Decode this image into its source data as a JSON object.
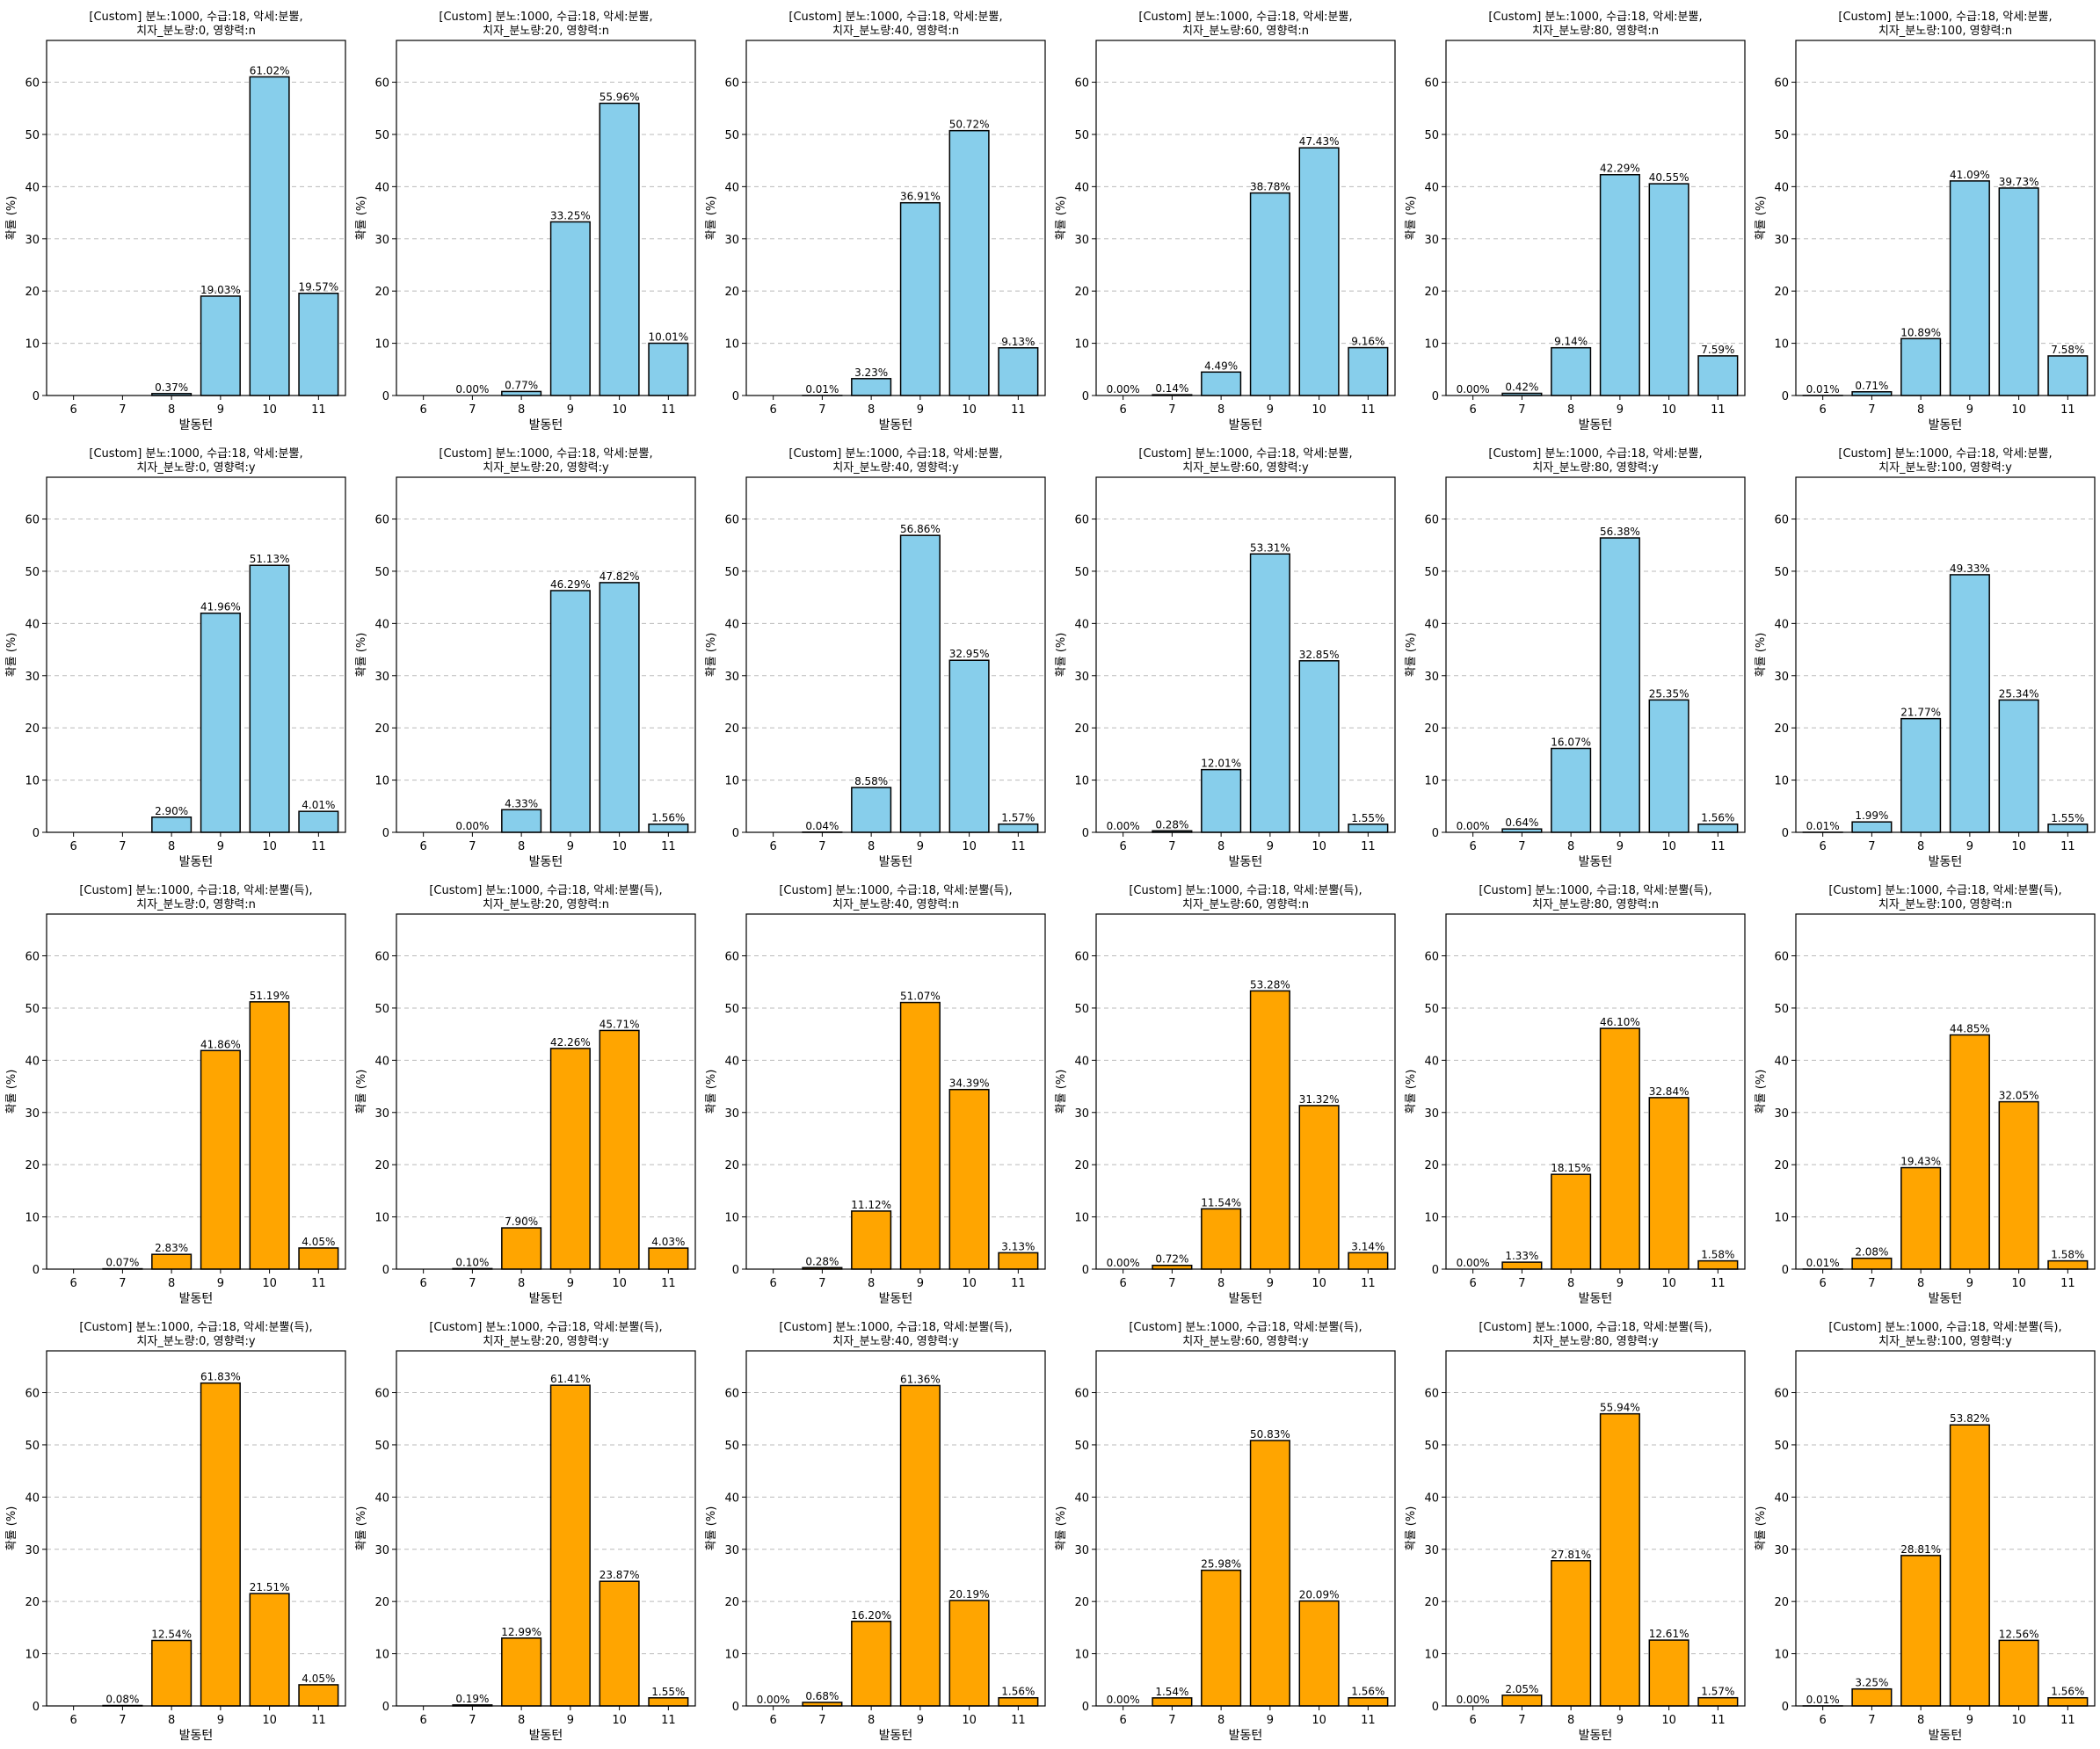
{
  "colors": {
    "row1": "#87ceeb",
    "row2": "#87ceeb",
    "row3": "#ffa500",
    "row4": "#ffa500",
    "edge": "#000000",
    "grid": "#bbbbbb"
  },
  "chart_data": [
    {
      "type": "bar",
      "title": [
        "[Custom] 분노:1000, 수급:18, 악세:분뿔,",
        "치자_분노량:0, 영향력:n"
      ],
      "xlabel": "발동턴",
      "ylabel": "확률 (%)",
      "categories": [
        "6",
        "7",
        "8",
        "9",
        "10",
        "11"
      ],
      "values": [
        null,
        null,
        0.37,
        19.03,
        61.02,
        19.57
      ],
      "labels": [
        "",
        "",
        "0.37%",
        "19.03%",
        "61.02%",
        "19.57%"
      ],
      "ylim": [
        0,
        68
      ],
      "yticks": [
        0,
        10,
        20,
        30,
        40,
        50,
        60
      ],
      "grid": "y-dashed",
      "color": "#87ceeb"
    },
    {
      "type": "bar",
      "title": [
        "[Custom] 분노:1000, 수급:18, 악세:분뿔,",
        "치자_분노량:20, 영향력:n"
      ],
      "xlabel": "발동턴",
      "ylabel": "확률 (%)",
      "categories": [
        "6",
        "7",
        "8",
        "9",
        "10",
        "11"
      ],
      "values": [
        null,
        0.0,
        0.77,
        33.25,
        55.96,
        10.01
      ],
      "labels": [
        "",
        "0.00%",
        "0.77%",
        "33.25%",
        "55.96%",
        "10.01%"
      ],
      "ylim": [
        0,
        68
      ],
      "yticks": [
        0,
        10,
        20,
        30,
        40,
        50,
        60
      ],
      "grid": "y-dashed",
      "color": "#87ceeb"
    },
    {
      "type": "bar",
      "title": [
        "[Custom] 분노:1000, 수급:18, 악세:분뿔,",
        "치자_분노량:40, 영향력:n"
      ],
      "xlabel": "발동턴",
      "ylabel": "확률 (%)",
      "categories": [
        "6",
        "7",
        "8",
        "9",
        "10",
        "11"
      ],
      "values": [
        null,
        0.01,
        3.23,
        36.91,
        50.72,
        9.13
      ],
      "labels": [
        "",
        "0.01%",
        "3.23%",
        "36.91%",
        "50.72%",
        "9.13%"
      ],
      "ylim": [
        0,
        68
      ],
      "yticks": [
        0,
        10,
        20,
        30,
        40,
        50,
        60
      ],
      "grid": "y-dashed",
      "color": "#87ceeb"
    },
    {
      "type": "bar",
      "title": [
        "[Custom] 분노:1000, 수급:18, 악세:분뿔,",
        "치자_분노량:60, 영향력:n"
      ],
      "xlabel": "발동턴",
      "ylabel": "확률 (%)",
      "categories": [
        "6",
        "7",
        "8",
        "9",
        "10",
        "11"
      ],
      "values": [
        0.0,
        0.14,
        4.49,
        38.78,
        47.43,
        9.16
      ],
      "labels": [
        "0.00%",
        "0.14%",
        "4.49%",
        "38.78%",
        "47.43%",
        "9.16%"
      ],
      "ylim": [
        0,
        68
      ],
      "yticks": [
        0,
        10,
        20,
        30,
        40,
        50,
        60
      ],
      "grid": "y-dashed",
      "color": "#87ceeb"
    },
    {
      "type": "bar",
      "title": [
        "[Custom] 분노:1000, 수급:18, 악세:분뿔,",
        "치자_분노량:80, 영향력:n"
      ],
      "xlabel": "발동턴",
      "ylabel": "확률 (%)",
      "categories": [
        "6",
        "7",
        "8",
        "9",
        "10",
        "11"
      ],
      "values": [
        0.0,
        0.42,
        9.14,
        42.29,
        40.55,
        7.59
      ],
      "labels": [
        "0.00%",
        "0.42%",
        "9.14%",
        "42.29%",
        "40.55%",
        "7.59%"
      ],
      "ylim": [
        0,
        68
      ],
      "yticks": [
        0,
        10,
        20,
        30,
        40,
        50,
        60
      ],
      "grid": "y-dashed",
      "color": "#87ceeb"
    },
    {
      "type": "bar",
      "title": [
        "[Custom] 분노:1000, 수급:18, 악세:분뿔,",
        "치자_분노량:100, 영향력:n"
      ],
      "xlabel": "발동턴",
      "ylabel": "확률 (%)",
      "categories": [
        "6",
        "7",
        "8",
        "9",
        "10",
        "11"
      ],
      "values": [
        0.01,
        0.71,
        10.89,
        41.09,
        39.73,
        7.58
      ],
      "labels": [
        "0.01%",
        "0.71%",
        "10.89%",
        "41.09%",
        "39.73%",
        "7.58%"
      ],
      "ylim": [
        0,
        68
      ],
      "yticks": [
        0,
        10,
        20,
        30,
        40,
        50,
        60
      ],
      "grid": "y-dashed",
      "color": "#87ceeb"
    },
    {
      "type": "bar",
      "title": [
        "[Custom] 분노:1000, 수급:18, 악세:분뿔,",
        "치자_분노량:0, 영향력:y"
      ],
      "xlabel": "발동턴",
      "ylabel": "확률 (%)",
      "categories": [
        "6",
        "7",
        "8",
        "9",
        "10",
        "11"
      ],
      "values": [
        null,
        null,
        2.9,
        41.96,
        51.13,
        4.01
      ],
      "labels": [
        "",
        "",
        "2.90%",
        "41.96%",
        "51.13%",
        "4.01%"
      ],
      "ylim": [
        0,
        68
      ],
      "yticks": [
        0,
        10,
        20,
        30,
        40,
        50,
        60
      ],
      "grid": "y-dashed",
      "color": "#87ceeb"
    },
    {
      "type": "bar",
      "title": [
        "[Custom] 분노:1000, 수급:18, 악세:분뿔,",
        "치자_분노량:20, 영향력:y"
      ],
      "xlabel": "발동턴",
      "ylabel": "확률 (%)",
      "categories": [
        "6",
        "7",
        "8",
        "9",
        "10",
        "11"
      ],
      "values": [
        null,
        0.0,
        4.33,
        46.29,
        47.82,
        1.56
      ],
      "labels": [
        "",
        "0.00%",
        "4.33%",
        "46.29%",
        "47.82%",
        "1.56%"
      ],
      "ylim": [
        0,
        68
      ],
      "yticks": [
        0,
        10,
        20,
        30,
        40,
        50,
        60
      ],
      "grid": "y-dashed",
      "color": "#87ceeb"
    },
    {
      "type": "bar",
      "title": [
        "[Custom] 분노:1000, 수급:18, 악세:분뿔,",
        "치자_분노량:40, 영향력:y"
      ],
      "xlabel": "발동턴",
      "ylabel": "확률 (%)",
      "categories": [
        "6",
        "7",
        "8",
        "9",
        "10",
        "11"
      ],
      "values": [
        null,
        0.04,
        8.58,
        56.86,
        32.95,
        1.57
      ],
      "labels": [
        "",
        "0.04%",
        "8.58%",
        "56.86%",
        "32.95%",
        "1.57%"
      ],
      "ylim": [
        0,
        68
      ],
      "yticks": [
        0,
        10,
        20,
        30,
        40,
        50,
        60
      ],
      "grid": "y-dashed",
      "color": "#87ceeb"
    },
    {
      "type": "bar",
      "title": [
        "[Custom] 분노:1000, 수급:18, 악세:분뿔,",
        "치자_분노량:60, 영향력:y"
      ],
      "xlabel": "발동턴",
      "ylabel": "확률 (%)",
      "categories": [
        "6",
        "7",
        "8",
        "9",
        "10",
        "11"
      ],
      "values": [
        0.0,
        0.28,
        12.01,
        53.31,
        32.85,
        1.55
      ],
      "labels": [
        "0.00%",
        "0.28%",
        "12.01%",
        "53.31%",
        "32.85%",
        "1.55%"
      ],
      "ylim": [
        0,
        68
      ],
      "yticks": [
        0,
        10,
        20,
        30,
        40,
        50,
        60
      ],
      "grid": "y-dashed",
      "color": "#87ceeb"
    },
    {
      "type": "bar",
      "title": [
        "[Custom] 분노:1000, 수급:18, 악세:분뿔,",
        "치자_분노량:80, 영향력:y"
      ],
      "xlabel": "발동턴",
      "ylabel": "확률 (%)",
      "categories": [
        "6",
        "7",
        "8",
        "9",
        "10",
        "11"
      ],
      "values": [
        0.0,
        0.64,
        16.07,
        56.38,
        25.35,
        1.56
      ],
      "labels": [
        "0.00%",
        "0.64%",
        "16.07%",
        "56.38%",
        "25.35%",
        "1.56%"
      ],
      "ylim": [
        0,
        68
      ],
      "yticks": [
        0,
        10,
        20,
        30,
        40,
        50,
        60
      ],
      "grid": "y-dashed",
      "color": "#87ceeb"
    },
    {
      "type": "bar",
      "title": [
        "[Custom] 분노:1000, 수급:18, 악세:분뿔,",
        "치자_분노량:100, 영향력:y"
      ],
      "xlabel": "발동턴",
      "ylabel": "확률 (%)",
      "categories": [
        "6",
        "7",
        "8",
        "9",
        "10",
        "11"
      ],
      "values": [
        0.01,
        1.99,
        21.77,
        49.33,
        25.34,
        1.55
      ],
      "labels": [
        "0.01%",
        "1.99%",
        "21.77%",
        "49.33%",
        "25.34%",
        "1.55%"
      ],
      "ylim": [
        0,
        68
      ],
      "yticks": [
        0,
        10,
        20,
        30,
        40,
        50,
        60
      ],
      "grid": "y-dashed",
      "color": "#87ceeb"
    },
    {
      "type": "bar",
      "title": [
        "[Custom] 분노:1000, 수급:18, 악세:분뿔(득),",
        "치자_분노량:0, 영향력:n"
      ],
      "xlabel": "발동턴",
      "ylabel": "확률 (%)",
      "categories": [
        "6",
        "7",
        "8",
        "9",
        "10",
        "11"
      ],
      "values": [
        null,
        0.07,
        2.83,
        41.86,
        51.19,
        4.05
      ],
      "labels": [
        "",
        "0.07%",
        "2.83%",
        "41.86%",
        "51.19%",
        "4.05%"
      ],
      "ylim": [
        0,
        68
      ],
      "yticks": [
        0,
        10,
        20,
        30,
        40,
        50,
        60
      ],
      "grid": "y-dashed",
      "color": "#ffa500"
    },
    {
      "type": "bar",
      "title": [
        "[Custom] 분노:1000, 수급:18, 악세:분뿔(득),",
        "치자_분노량:20, 영향력:n"
      ],
      "xlabel": "발동턴",
      "ylabel": "확률 (%)",
      "categories": [
        "6",
        "7",
        "8",
        "9",
        "10",
        "11"
      ],
      "values": [
        null,
        0.1,
        7.9,
        42.26,
        45.71,
        4.03
      ],
      "labels": [
        "",
        "0.10%",
        "7.90%",
        "42.26%",
        "45.71%",
        "4.03%"
      ],
      "ylim": [
        0,
        68
      ],
      "yticks": [
        0,
        10,
        20,
        30,
        40,
        50,
        60
      ],
      "grid": "y-dashed",
      "color": "#ffa500"
    },
    {
      "type": "bar",
      "title": [
        "[Custom] 분노:1000, 수급:18, 악세:분뿔(득),",
        "치자_분노량:40, 영향력:n"
      ],
      "xlabel": "발동턴",
      "ylabel": "확률 (%)",
      "categories": [
        "6",
        "7",
        "8",
        "9",
        "10",
        "11"
      ],
      "values": [
        null,
        0.28,
        11.12,
        51.07,
        34.39,
        3.13
      ],
      "labels": [
        "",
        "0.28%",
        "11.12%",
        "51.07%",
        "34.39%",
        "3.13%"
      ],
      "ylim": [
        0,
        68
      ],
      "yticks": [
        0,
        10,
        20,
        30,
        40,
        50,
        60
      ],
      "grid": "y-dashed",
      "color": "#ffa500"
    },
    {
      "type": "bar",
      "title": [
        "[Custom] 분노:1000, 수급:18, 악세:분뿔(득),",
        "치자_분노량:60, 영향력:n"
      ],
      "xlabel": "발동턴",
      "ylabel": "확률 (%)",
      "categories": [
        "6",
        "7",
        "8",
        "9",
        "10",
        "11"
      ],
      "values": [
        0.0,
        0.72,
        11.54,
        53.28,
        31.32,
        3.14
      ],
      "labels": [
        "0.00%",
        "0.72%",
        "11.54%",
        "53.28%",
        "31.32%",
        "3.14%"
      ],
      "ylim": [
        0,
        68
      ],
      "yticks": [
        0,
        10,
        20,
        30,
        40,
        50,
        60
      ],
      "grid": "y-dashed",
      "color": "#ffa500"
    },
    {
      "type": "bar",
      "title": [
        "[Custom] 분노:1000, 수급:18, 악세:분뿔(득),",
        "치자_분노량:80, 영향력:n"
      ],
      "xlabel": "발동턴",
      "ylabel": "확률 (%)",
      "categories": [
        "6",
        "7",
        "8",
        "9",
        "10",
        "11"
      ],
      "values": [
        0.0,
        1.33,
        18.15,
        46.1,
        32.84,
        1.58
      ],
      "labels": [
        "0.00%",
        "1.33%",
        "18.15%",
        "46.10%",
        "32.84%",
        "1.58%"
      ],
      "ylim": [
        0,
        68
      ],
      "yticks": [
        0,
        10,
        20,
        30,
        40,
        50,
        60
      ],
      "grid": "y-dashed",
      "color": "#ffa500"
    },
    {
      "type": "bar",
      "title": [
        "[Custom] 분노:1000, 수급:18, 악세:분뿔(득),",
        "치자_분노량:100, 영향력:n"
      ],
      "xlabel": "발동턴",
      "ylabel": "확률 (%)",
      "categories": [
        "6",
        "7",
        "8",
        "9",
        "10",
        "11"
      ],
      "values": [
        0.01,
        2.08,
        19.43,
        44.85,
        32.05,
        1.58
      ],
      "labels": [
        "0.01%",
        "2.08%",
        "19.43%",
        "44.85%",
        "32.05%",
        "1.58%"
      ],
      "ylim": [
        0,
        68
      ],
      "yticks": [
        0,
        10,
        20,
        30,
        40,
        50,
        60
      ],
      "grid": "y-dashed",
      "color": "#ffa500"
    },
    {
      "type": "bar",
      "title": [
        "[Custom] 분노:1000, 수급:18, 악세:분뿔(득),",
        "치자_분노량:0, 영향력:y"
      ],
      "xlabel": "발동턴",
      "ylabel": "확률 (%)",
      "categories": [
        "6",
        "7",
        "8",
        "9",
        "10",
        "11"
      ],
      "values": [
        null,
        0.08,
        12.54,
        61.83,
        21.51,
        4.05
      ],
      "labels": [
        "",
        "0.08%",
        "12.54%",
        "61.83%",
        "21.51%",
        "4.05%"
      ],
      "ylim": [
        0,
        68
      ],
      "yticks": [
        0,
        10,
        20,
        30,
        40,
        50,
        60
      ],
      "grid": "y-dashed",
      "color": "#ffa500"
    },
    {
      "type": "bar",
      "title": [
        "[Custom] 분노:1000, 수급:18, 악세:분뿔(득),",
        "치자_분노량:20, 영향력:y"
      ],
      "xlabel": "발동턴",
      "ylabel": "확률 (%)",
      "categories": [
        "6",
        "7",
        "8",
        "9",
        "10",
        "11"
      ],
      "values": [
        null,
        0.19,
        12.99,
        61.41,
        23.87,
        1.55
      ],
      "labels": [
        "",
        "0.19%",
        "12.99%",
        "61.41%",
        "23.87%",
        "1.55%"
      ],
      "ylim": [
        0,
        68
      ],
      "yticks": [
        0,
        10,
        20,
        30,
        40,
        50,
        60
      ],
      "grid": "y-dashed",
      "color": "#ffa500"
    },
    {
      "type": "bar",
      "title": [
        "[Custom] 분노:1000, 수급:18, 악세:분뿔(득),",
        "치자_분노량:40, 영향력:y"
      ],
      "xlabel": "발동턴",
      "ylabel": "확률 (%)",
      "categories": [
        "6",
        "7",
        "8",
        "9",
        "10",
        "11"
      ],
      "values": [
        0.0,
        0.68,
        16.2,
        61.36,
        20.19,
        1.56
      ],
      "labels": [
        "0.00%",
        "0.68%",
        "16.20%",
        "61.36%",
        "20.19%",
        "1.56%"
      ],
      "ylim": [
        0,
        68
      ],
      "yticks": [
        0,
        10,
        20,
        30,
        40,
        50,
        60
      ],
      "grid": "y-dashed",
      "color": "#ffa500"
    },
    {
      "type": "bar",
      "title": [
        "[Custom] 분노:1000, 수급:18, 악세:분뿔(득),",
        "치자_분노량:60, 영향력:y"
      ],
      "xlabel": "발동턴",
      "ylabel": "확률 (%)",
      "categories": [
        "6",
        "7",
        "8",
        "9",
        "10",
        "11"
      ],
      "values": [
        0.0,
        1.54,
        25.98,
        50.83,
        20.09,
        1.56
      ],
      "labels": [
        "0.00%",
        "1.54%",
        "25.98%",
        "50.83%",
        "20.09%",
        "1.56%"
      ],
      "ylim": [
        0,
        68
      ],
      "yticks": [
        0,
        10,
        20,
        30,
        40,
        50,
        60
      ],
      "grid": "y-dashed",
      "color": "#ffa500"
    },
    {
      "type": "bar",
      "title": [
        "[Custom] 분노:1000, 수급:18, 악세:분뿔(득),",
        "치자_분노량:80, 영향력:y"
      ],
      "xlabel": "발동턴",
      "ylabel": "확률 (%)",
      "categories": [
        "6",
        "7",
        "8",
        "9",
        "10",
        "11"
      ],
      "values": [
        0.0,
        2.05,
        27.81,
        55.94,
        12.61,
        1.57
      ],
      "labels": [
        "0.00%",
        "2.05%",
        "27.81%",
        "55.94%",
        "12.61%",
        "1.57%"
      ],
      "ylim": [
        0,
        68
      ],
      "yticks": [
        0,
        10,
        20,
        30,
        40,
        50,
        60
      ],
      "grid": "y-dashed",
      "color": "#ffa500"
    },
    {
      "type": "bar",
      "title": [
        "[Custom] 분노:1000, 수급:18, 악세:분뿔(득),",
        "치자_분노량:100, 영향력:y"
      ],
      "xlabel": "발동턴",
      "ylabel": "확률 (%)",
      "categories": [
        "6",
        "7",
        "8",
        "9",
        "10",
        "11"
      ],
      "values": [
        0.01,
        3.25,
        28.81,
        53.82,
        12.56,
        1.56
      ],
      "labels": [
        "0.01%",
        "3.25%",
        "28.81%",
        "53.82%",
        "12.56%",
        "1.56%"
      ],
      "ylim": [
        0,
        68
      ],
      "yticks": [
        0,
        10,
        20,
        30,
        40,
        50,
        60
      ],
      "grid": "y-dashed",
      "color": "#ffa500"
    }
  ]
}
